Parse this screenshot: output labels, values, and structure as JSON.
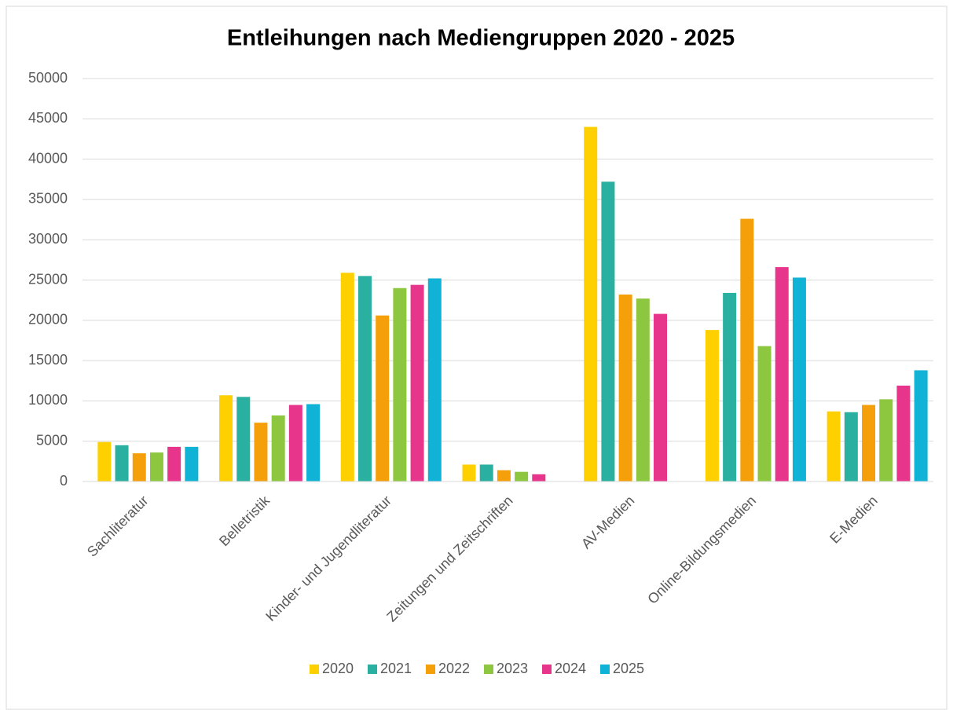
{
  "chart_data": {
    "type": "bar",
    "title": "Entleihungen nach Mediengruppen 2020 - 2025",
    "categories": [
      "Sachliteratur",
      "Belletristik",
      "Kinder- und Jugendliteratur",
      "Zeitungen und Zeitschriften",
      "AV-Medien",
      "Online-Bildungsmedien",
      "E-Medien"
    ],
    "series": [
      {
        "name": "2020",
        "color": "#ffd000",
        "values": [
          4900,
          10700,
          25900,
          2100,
          44000,
          18800,
          8700
        ]
      },
      {
        "name": "2021",
        "color": "#2ab0a0",
        "values": [
          4500,
          10500,
          25500,
          2100,
          37200,
          23400,
          8600
        ]
      },
      {
        "name": "2022",
        "color": "#f5a00a",
        "values": [
          3500,
          7300,
          20600,
          1400,
          23200,
          32600,
          9500
        ]
      },
      {
        "name": "2023",
        "color": "#8dc63f",
        "values": [
          3600,
          8200,
          24000,
          1200,
          22700,
          16800,
          10200
        ]
      },
      {
        "name": "2024",
        "color": "#e8358c",
        "values": [
          4300,
          9500,
          24400,
          900,
          20800,
          26600,
          11900
        ]
      },
      {
        "name": "2025",
        "color": "#10b3d6",
        "values": [
          4300,
          9600,
          25200,
          0,
          0,
          25300,
          13800
        ]
      }
    ],
    "ylim": [
      0,
      50000
    ],
    "yticks": [
      0,
      5000,
      10000,
      15000,
      20000,
      25000,
      30000,
      35000,
      40000,
      45000,
      50000
    ],
    "grid": true,
    "legend": "bottom"
  }
}
